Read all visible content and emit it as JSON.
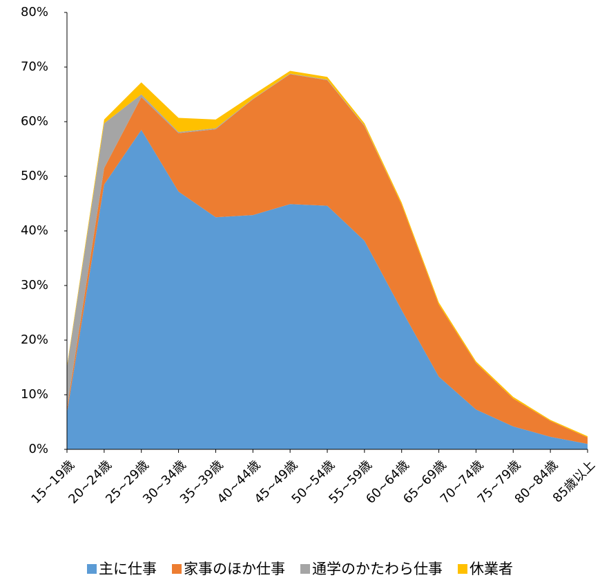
{
  "chart_data": {
    "type": "stacked_area",
    "categories": [
      "15~19歳",
      "20~24歳",
      "25~29歳",
      "30~34歳",
      "35~39歳",
      "40~44歳",
      "45~49歳",
      "50~54歳",
      "55~59歳",
      "60~64歳",
      "65~69歳",
      "70~74歳",
      "75~79歳",
      "80~84歳",
      "85歳以上"
    ],
    "series": [
      {
        "name": "主に仕事",
        "color": "#5b9bd5",
        "values": [
          6.7,
          48.5,
          58.5,
          47.2,
          42.5,
          42.9,
          44.9,
          44.6,
          38.2,
          25.5,
          13.3,
          7.3,
          4.2,
          2.3,
          1.0
        ]
      },
      {
        "name": "家事のほか仕事",
        "color": "#ed7d31",
        "values": [
          0.8,
          3.0,
          6.0,
          10.7,
          16.1,
          21.2,
          23.8,
          23.0,
          21.0,
          19.3,
          13.2,
          8.5,
          5.1,
          2.9,
          1.2
        ]
      },
      {
        "name": "通学のかたわら仕事",
        "color": "#a5a5a5",
        "values": [
          7.5,
          8.2,
          0.5,
          0.2,
          0.2,
          0.1,
          0.1,
          0.1,
          0.1,
          0,
          0,
          0,
          0,
          0,
          0
        ]
      },
      {
        "name": "休業者",
        "color": "#ffc000",
        "values": [
          0.3,
          0.7,
          2.2,
          2.6,
          1.6,
          0.7,
          0.5,
          0.5,
          0.4,
          0.4,
          0.4,
          0.3,
          0.3,
          0.2,
          0.2
        ]
      }
    ],
    "ylim": [
      0,
      80
    ],
    "yticks": [
      {
        "value": 0,
        "label": "0%"
      },
      {
        "value": 10,
        "label": "10%"
      },
      {
        "value": 20,
        "label": "20%"
      },
      {
        "value": 30,
        "label": "30%"
      },
      {
        "value": 40,
        "label": "40%"
      },
      {
        "value": 50,
        "label": "50%"
      },
      {
        "value": 60,
        "label": "60%"
      },
      {
        "value": 70,
        "label": "70%"
      },
      {
        "value": 80,
        "label": "80%"
      }
    ],
    "legend": "bottom"
  }
}
